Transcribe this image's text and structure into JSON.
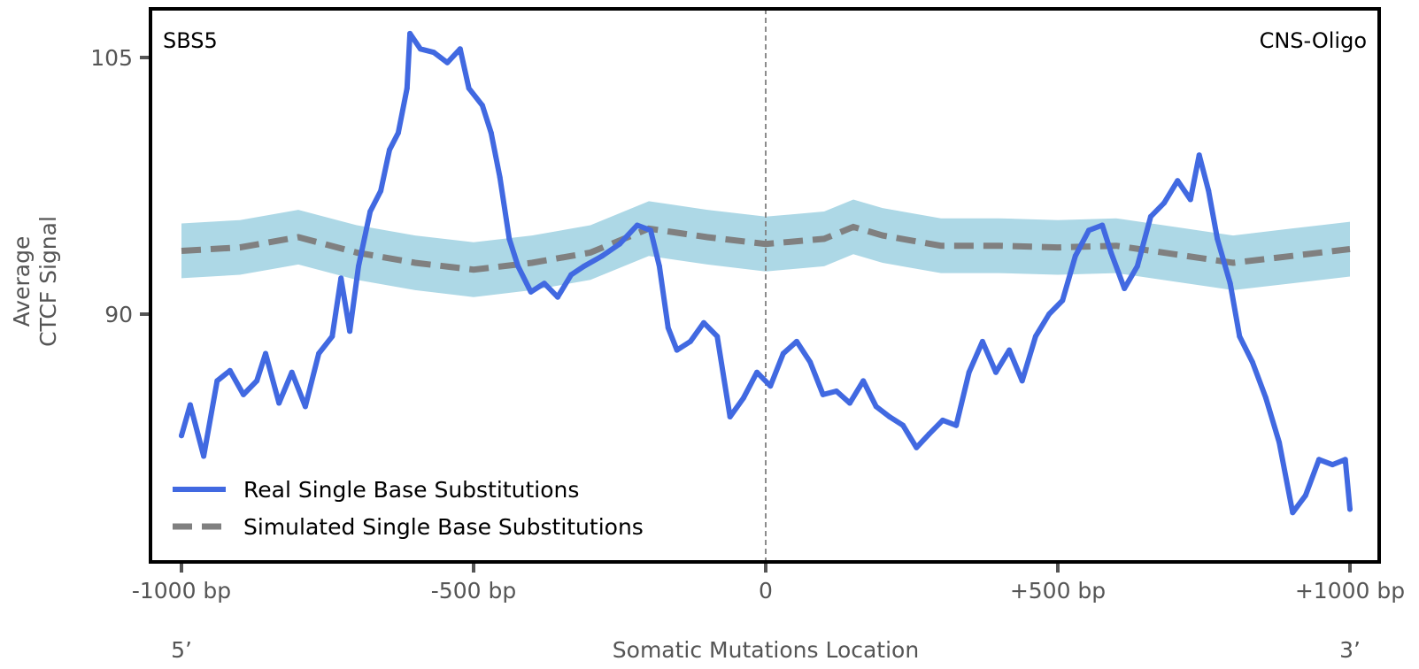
{
  "chart_data": {
    "type": "line",
    "title_left": "SBS5",
    "title_right": "CNS-Oligo",
    "xlabel": "Somatic Mutations Location",
    "ylabel_lines": [
      "Average",
      "CTCF Signal"
    ],
    "xlim": [
      -1050,
      1050
    ],
    "ylim": [
      76,
      108.5
    ],
    "x_ticks": [
      -1000,
      -500,
      0,
      500,
      1000
    ],
    "x_tick_labels": [
      "-1000 bp",
      "-500 bp",
      "0",
      "+500 bp",
      "+1000 bp"
    ],
    "y_ticks": [
      90,
      105
    ],
    "y_tick_labels": [
      "90",
      "105"
    ],
    "end_labels": {
      "left": "5’",
      "right": "3’"
    },
    "center_line_x": 0,
    "grid": false,
    "legend_position": "lower-left",
    "colors": {
      "real": "#4169e1",
      "simulated": "#808080",
      "band": "#add8e6",
      "center_line": "#808080",
      "frame": "#000000"
    },
    "series": [
      {
        "name": "Real Single Base Substitutions",
        "style": "solid",
        "x": [
          -1000,
          -985,
          -962,
          -939,
          -917,
          -894,
          -871,
          -856,
          -833,
          -811,
          -788,
          -765,
          -742,
          -727,
          -712,
          -697,
          -677,
          -659,
          -644,
          -629,
          -614,
          -609,
          -591,
          -568,
          -545,
          -523,
          -508,
          -485,
          -470,
          -455,
          -439,
          -424,
          -402,
          -379,
          -356,
          -333,
          -311,
          -280,
          -250,
          -220,
          -197,
          -182,
          -167,
          -152,
          -129,
          -106,
          -83,
          -61,
          -38,
          -15,
          8,
          30,
          53,
          76,
          98,
          121,
          144,
          167,
          189,
          212,
          235,
          258,
          280,
          303,
          326,
          348,
          371,
          394,
          417,
          439,
          462,
          485,
          508,
          530,
          553,
          576,
          591,
          614,
          636,
          659,
          682,
          705,
          727,
          742,
          758,
          773,
          795,
          811,
          833,
          856,
          879,
          902,
          924,
          947,
          970,
          992,
          1000
        ],
        "values": [
          82.9,
          84.7,
          81.7,
          86.1,
          86.7,
          85.3,
          86.1,
          87.7,
          84.8,
          86.6,
          84.6,
          87.7,
          88.7,
          92.1,
          89.0,
          92.8,
          96.0,
          97.2,
          99.6,
          100.6,
          103.2,
          106.4,
          105.5,
          105.3,
          104.7,
          105.5,
          103.2,
          102.2,
          100.6,
          98.0,
          94.4,
          92.8,
          91.3,
          91.8,
          91.0,
          92.3,
          92.8,
          93.4,
          94.1,
          95.2,
          94.9,
          92.8,
          89.2,
          87.9,
          88.4,
          89.5,
          88.7,
          84.0,
          85.1,
          86.6,
          85.8,
          87.7,
          88.4,
          87.2,
          85.3,
          85.5,
          84.8,
          86.1,
          84.6,
          84.0,
          83.5,
          82.2,
          83.0,
          83.8,
          83.5,
          86.6,
          88.4,
          86.6,
          87.9,
          86.1,
          88.7,
          90.0,
          90.8,
          93.4,
          94.9,
          95.2,
          93.6,
          91.5,
          92.8,
          95.7,
          96.5,
          97.8,
          96.7,
          99.3,
          97.2,
          94.4,
          91.8,
          88.7,
          87.2,
          85.1,
          82.5,
          78.4,
          79.4,
          81.5,
          81.2,
          81.5,
          78.6
        ]
      },
      {
        "name": "Simulated Single Base Substitutions",
        "style": "dashed",
        "x": [
          -1000,
          -900,
          -800,
          -700,
          -600,
          -500,
          -400,
          -300,
          -200,
          -100,
          0,
          100,
          150,
          200,
          300,
          400,
          500,
          600,
          700,
          800,
          900,
          1000
        ],
        "values": [
          93.7,
          93.9,
          94.5,
          93.6,
          93.0,
          92.6,
          93.0,
          93.6,
          95.0,
          94.5,
          94.1,
          94.4,
          95.1,
          94.6,
          94.0,
          94.0,
          93.9,
          94.0,
          93.5,
          93.0,
          93.4,
          93.8
        ],
        "band_halfwidth": 1.6
      }
    ]
  }
}
